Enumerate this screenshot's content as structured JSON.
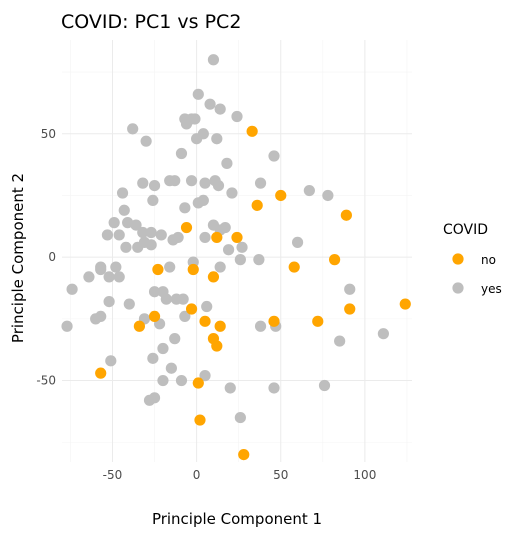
{
  "chart_data": {
    "type": "scatter",
    "title": "COVID: PC1 vs PC2",
    "xlabel": "Principle Component 1",
    "ylabel": "Principle Component 2",
    "xlim": [
      -80,
      128
    ],
    "ylim": [
      -83,
      88
    ],
    "x_ticks": [
      -50,
      0,
      50,
      100
    ],
    "y_ticks": [
      -50,
      0,
      50
    ],
    "x_tick_labels": [
      "-50",
      "0",
      "50",
      "100"
    ],
    "y_tick_labels": [
      "-50",
      "0",
      "50"
    ],
    "grid": true,
    "legend": {
      "title": "COVID",
      "position": "right"
    },
    "series": [
      {
        "name": "no",
        "color": "#FFA500",
        "points": [
          [
            33,
            51
          ],
          [
            50,
            25
          ],
          [
            36,
            21
          ],
          [
            89,
            17
          ],
          [
            24,
            8
          ],
          [
            12,
            8
          ],
          [
            -6,
            12
          ],
          [
            -23,
            -5
          ],
          [
            -2,
            -5
          ],
          [
            58,
            -4
          ],
          [
            82,
            -1
          ],
          [
            10,
            -8
          ],
          [
            -25,
            -24
          ],
          [
            -3,
            -21
          ],
          [
            5,
            -26
          ],
          [
            14,
            -28
          ],
          [
            -34,
            -28
          ],
          [
            46,
            -26
          ],
          [
            72,
            -26
          ],
          [
            91,
            -21
          ],
          [
            124,
            -19
          ],
          [
            10,
            -33
          ],
          [
            12,
            -36
          ],
          [
            -57,
            -47
          ],
          [
            1,
            -51
          ],
          [
            2,
            -66
          ],
          [
            28,
            -80
          ]
        ]
      },
      {
        "name": "yes",
        "color": "#BEBEBE",
        "points": [
          [
            10,
            80
          ],
          [
            1,
            66
          ],
          [
            -7,
            56
          ],
          [
            -6,
            54
          ],
          [
            -3,
            56
          ],
          [
            -1,
            56
          ],
          [
            8,
            62
          ],
          [
            14,
            60
          ],
          [
            4,
            50
          ],
          [
            12,
            48
          ],
          [
            -38,
            52
          ],
          [
            -30,
            47
          ],
          [
            -9,
            42
          ],
          [
            24,
            57
          ],
          [
            18,
            38
          ],
          [
            46,
            41
          ],
          [
            -25,
            29
          ],
          [
            -16,
            31
          ],
          [
            -13,
            31
          ],
          [
            -3,
            31
          ],
          [
            5,
            30
          ],
          [
            11,
            31
          ],
          [
            13,
            29
          ],
          [
            -32,
            30
          ],
          [
            38,
            30
          ],
          [
            67,
            27
          ],
          [
            78,
            25
          ],
          [
            -44,
            26
          ],
          [
            -26,
            23
          ],
          [
            1,
            22
          ],
          [
            4,
            23
          ],
          [
            -7,
            20
          ],
          [
            21,
            26
          ],
          [
            -43,
            19
          ],
          [
            -36,
            13
          ],
          [
            -41,
            14
          ],
          [
            -32,
            10
          ],
          [
            -27,
            10
          ],
          [
            -49,
            14
          ],
          [
            -53,
            9
          ],
          [
            -46,
            9
          ],
          [
            -31,
            6
          ],
          [
            -21,
            9
          ],
          [
            -11,
            8
          ],
          [
            -14,
            7
          ],
          [
            5,
            8
          ],
          [
            17,
            12
          ],
          [
            10,
            13
          ],
          [
            14,
            11
          ],
          [
            -42,
            4
          ],
          [
            -35,
            4
          ],
          [
            -27,
            5
          ],
          [
            -57,
            -4
          ],
          [
            -48,
            -4
          ],
          [
            -64,
            -8
          ],
          [
            -57,
            -5
          ],
          [
            -52,
            -8
          ],
          [
            -46,
            -8
          ],
          [
            19,
            3
          ],
          [
            27,
            4
          ],
          [
            60,
            6
          ],
          [
            -74,
            -13
          ],
          [
            -52,
            -18
          ],
          [
            -60,
            -25
          ],
          [
            -40,
            -19
          ],
          [
            -25,
            -14
          ],
          [
            -20,
            -14
          ],
          [
            -8,
            -17
          ],
          [
            37,
            -1
          ],
          [
            26,
            -1
          ],
          [
            14,
            -4
          ],
          [
            -2,
            -2
          ],
          [
            -12,
            -17
          ],
          [
            -16,
            -4
          ],
          [
            -22,
            -27
          ],
          [
            -31,
            -25
          ],
          [
            -77,
            -28
          ],
          [
            -57,
            -24
          ],
          [
            -20,
            -37
          ],
          [
            -13,
            -33
          ],
          [
            -7,
            -24
          ],
          [
            -20,
            -50
          ],
          [
            -26,
            -41
          ],
          [
            -15,
            -45
          ],
          [
            -9,
            -50
          ],
          [
            5,
            -48
          ],
          [
            20,
            -53
          ],
          [
            -28,
            -58
          ],
          [
            -25,
            -57
          ],
          [
            38,
            -28
          ],
          [
            47,
            -28
          ],
          [
            85,
            -34
          ],
          [
            91,
            -13
          ],
          [
            -51,
            -42
          ],
          [
            -18,
            -17
          ],
          [
            6,
            -20
          ],
          [
            26,
            -65
          ],
          [
            46,
            -53
          ],
          [
            76,
            -52
          ],
          [
            111,
            -31
          ],
          [
            0,
            48
          ]
        ]
      }
    ]
  }
}
